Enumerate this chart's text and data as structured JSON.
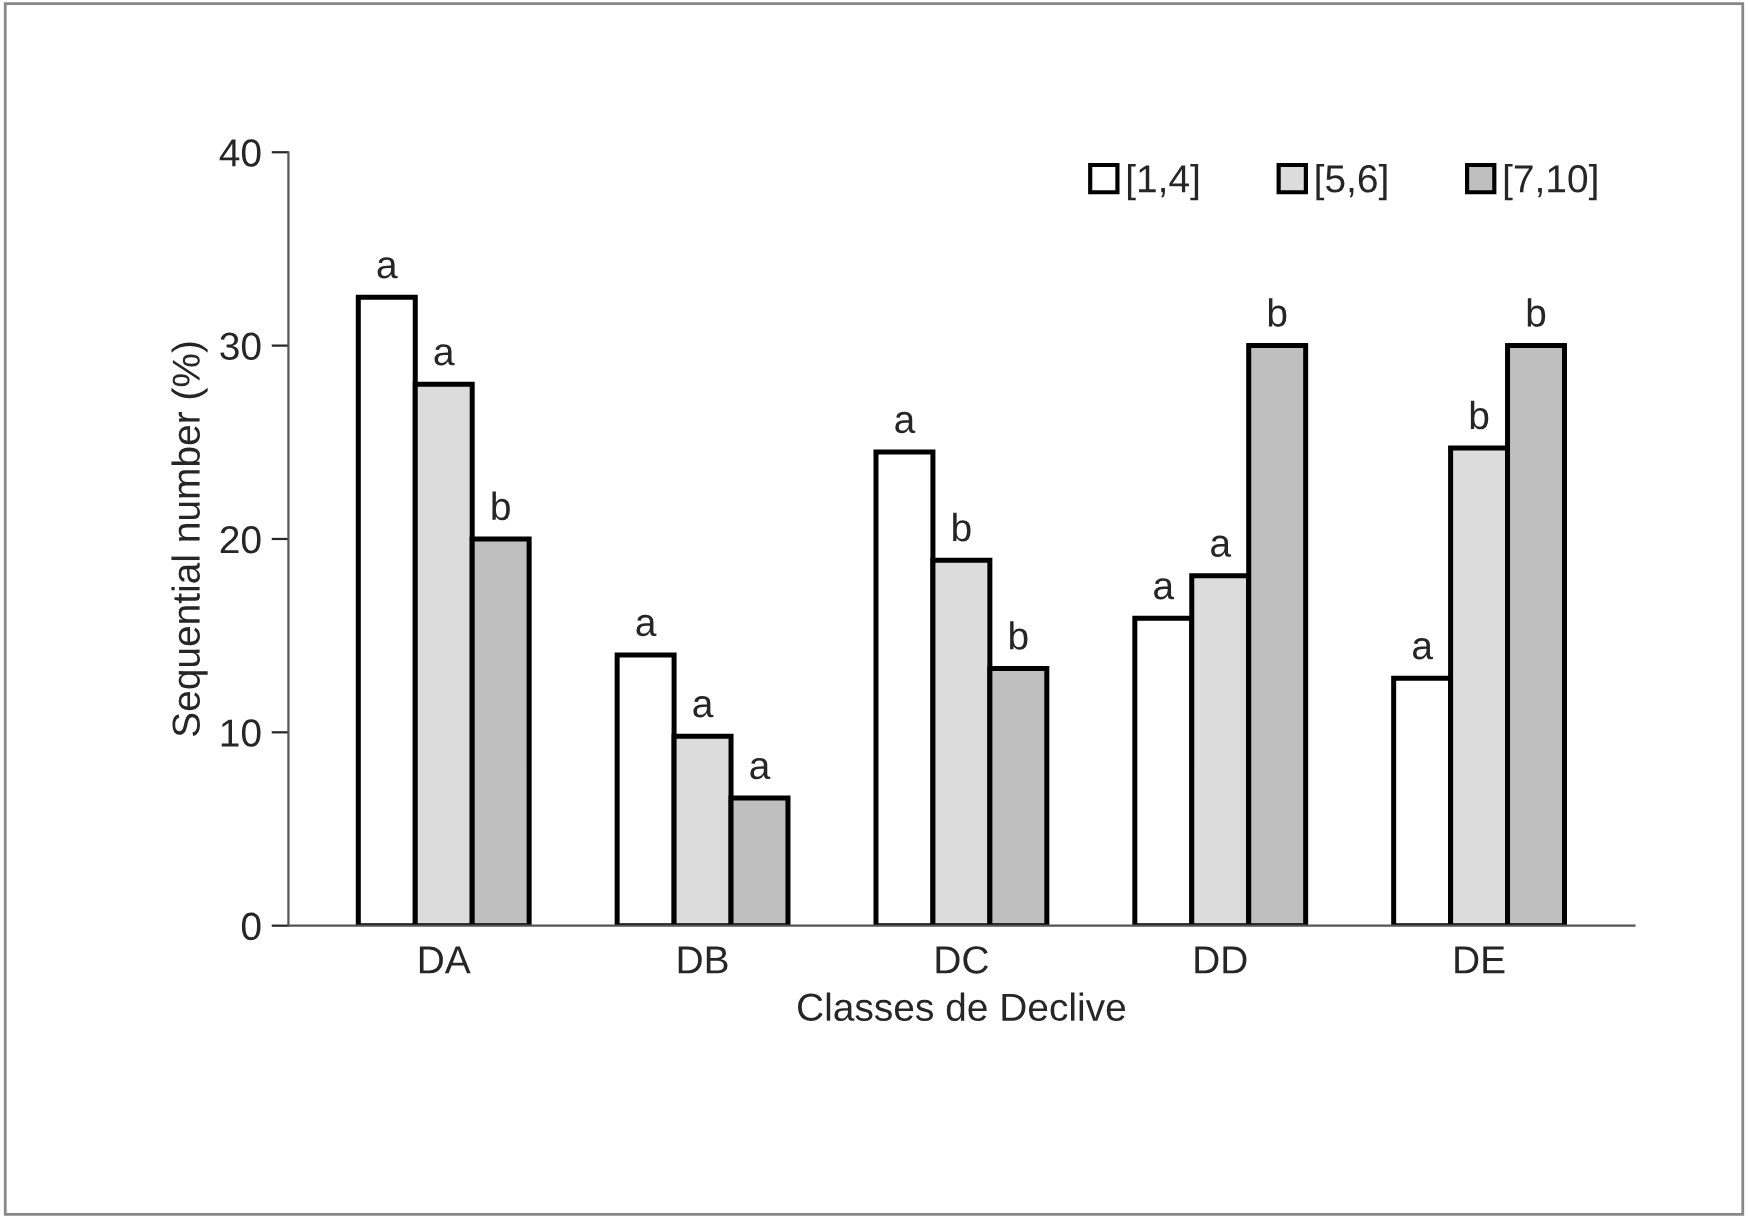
{
  "chart_data": {
    "type": "bar",
    "xlabel": "Classes de Declive",
    "ylabel": "Sequential number (%)",
    "categories": [
      "DA",
      "DB",
      "DC",
      "DD",
      "DE"
    ],
    "series": [
      {
        "name": "[1,4]",
        "color": "#ffffff",
        "values": [
          32.5,
          14,
          24.5,
          15.9,
          12.8
        ],
        "value_labels": [
          "a",
          "a",
          "a",
          "a",
          "a"
        ]
      },
      {
        "name": "[5,6]",
        "color": "#dcdcdc",
        "values": [
          28,
          9.8,
          18.9,
          18.1,
          24.7
        ],
        "value_labels": [
          "a",
          "a",
          "b",
          "a",
          "b"
        ]
      },
      {
        "name": "[7,10]",
        "color": "#bfbfbf",
        "values": [
          20,
          6.6,
          13.3,
          30,
          30
        ],
        "value_labels": [
          "b",
          "a",
          "b",
          "b",
          "b"
        ]
      }
    ],
    "ylim": [
      0,
      40
    ],
    "yticks": [
      0,
      10,
      20,
      30,
      40
    ],
    "grid": false,
    "legend": "top right"
  }
}
